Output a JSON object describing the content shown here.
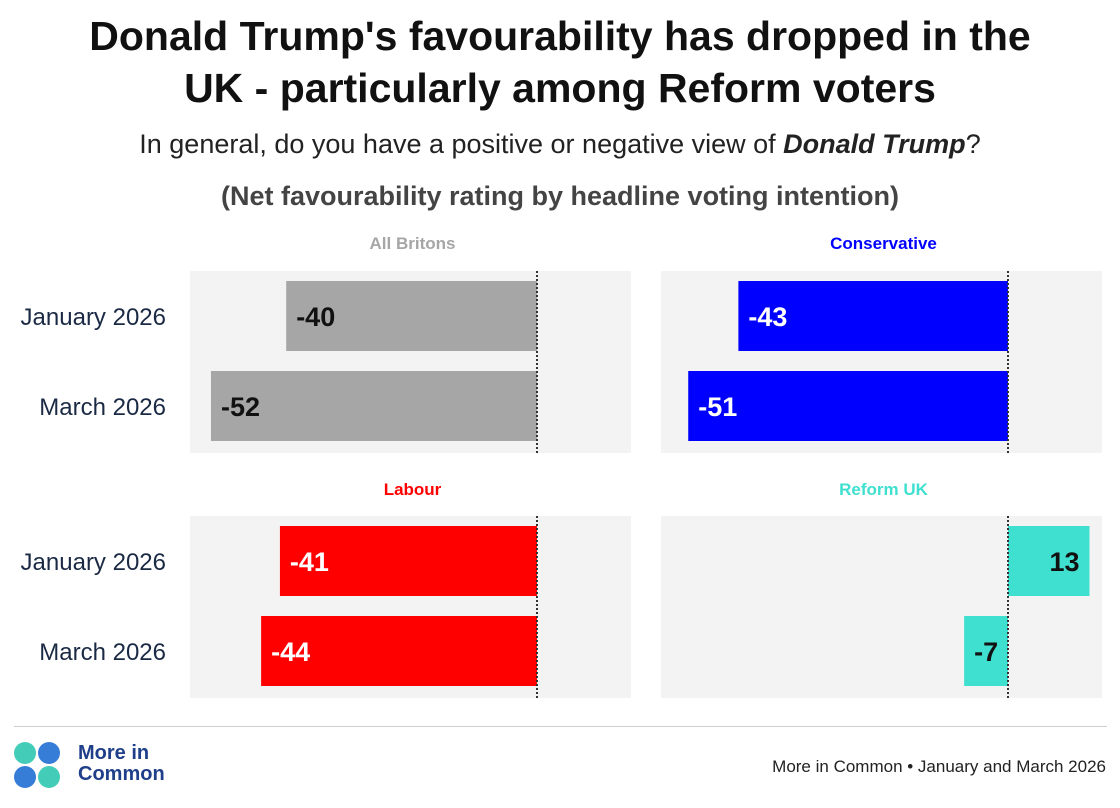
{
  "title_line1": "Donald Trump's favourability has dropped in the",
  "title_line2": "UK - particularly among Reform voters",
  "subtitle_prefix": "In general, do you have a positive or negative view of ",
  "subtitle_emphasis": "Donald Trump",
  "subtitle_suffix": "?",
  "measure_note": "(Net favourability rating by headline voting intention)",
  "brand": {
    "line1": "More in",
    "line2": "Common"
  },
  "source": "More in Common • January and March 2026",
  "colors": {
    "panel_background": "#f3f3f3",
    "all_britons": "#a6a6a6",
    "conservative": "#0000ff",
    "labour": "#ff0000",
    "reform": "#40e0d0",
    "logo_teal": "#2fc6b0",
    "logo_blue": "#1f6fd1"
  },
  "chart_data": [
    {
      "type": "bar",
      "orientation": "horizontal",
      "panel_title": "All Britons",
      "color": "#a6a6a6",
      "label_color": "#111111",
      "categories": [
        "January 2026",
        "March 2026"
      ],
      "values": [
        -40,
        -52
      ],
      "xlim": [
        -55,
        15
      ],
      "zero_line": true,
      "grid": false
    },
    {
      "type": "bar",
      "orientation": "horizontal",
      "panel_title": "Conservative",
      "color": "#0000ff",
      "label_color": "#ffffff",
      "categories": [
        "January 2026",
        "March 2026"
      ],
      "values": [
        -43,
        -51
      ],
      "xlim": [
        -55,
        15
      ],
      "zero_line": true,
      "grid": false
    },
    {
      "type": "bar",
      "orientation": "horizontal",
      "panel_title": "Labour",
      "color": "#ff0000",
      "label_color": "#ffffff",
      "categories": [
        "January 2026",
        "March 2026"
      ],
      "values": [
        -41,
        -44
      ],
      "xlim": [
        -55,
        15
      ],
      "zero_line": true,
      "grid": false
    },
    {
      "type": "bar",
      "orientation": "horizontal",
      "panel_title": "Reform UK",
      "color": "#40e0d0",
      "label_color": "#111111",
      "categories": [
        "January 2026",
        "March 2026"
      ],
      "values": [
        13,
        -7
      ],
      "xlim": [
        -55,
        15
      ],
      "zero_line": true,
      "grid": false
    }
  ]
}
